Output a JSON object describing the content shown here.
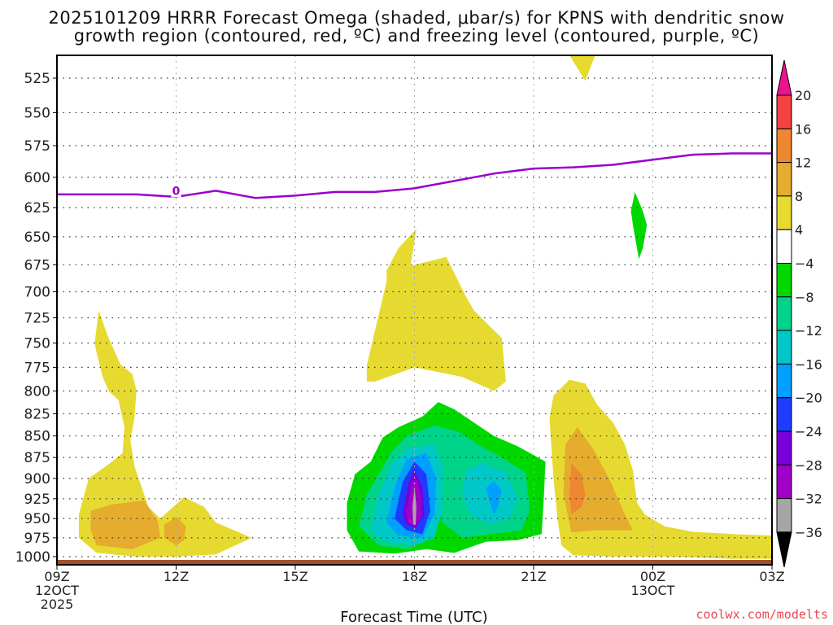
{
  "header": {
    "title_line1": "2025101209 HRRR Forecast Omega (shaded, μbar/s) for KPNS with dendritic snow",
    "title_line2": "growth region (contoured, red, ºC) and freezing level (contoured, purple, ºC)"
  },
  "footer": {
    "credit": "coolwx.com/modelts"
  },
  "chart_data": {
    "type": "heatmap",
    "subtype": "time-height cross section (filled contours)",
    "title": "2025101209 HRRR Forecast Omega (shaded, μbar/s) for KPNS with dendritic snow growth region (contoured, red, ºC) and freezing level (contoured, purple, ºC)",
    "xlabel": "Forecast Time (UTC)",
    "ylabel": "",
    "x_ticks": [
      {
        "hour": 0,
        "lines": [
          "09Z",
          "12OCT",
          "2025"
        ]
      },
      {
        "hour": 3,
        "lines": [
          "12Z"
        ]
      },
      {
        "hour": 6,
        "lines": [
          "15Z"
        ]
      },
      {
        "hour": 9,
        "lines": [
          "18Z"
        ]
      },
      {
        "hour": 12,
        "lines": [
          "21Z"
        ]
      },
      {
        "hour": 15,
        "lines": [
          "00Z",
          "13OCT"
        ]
      },
      {
        "hour": 18,
        "lines": [
          "03Z"
        ]
      }
    ],
    "xlim_hours": [
      0,
      18
    ],
    "y_ticks": [
      525,
      550,
      575,
      600,
      625,
      650,
      675,
      700,
      725,
      750,
      775,
      800,
      825,
      850,
      875,
      900,
      925,
      950,
      975,
      1000
    ],
    "ylim_hPa": [
      1008,
      508
    ],
    "y_scale": "log-pressure",
    "grid": true,
    "colorbar": {
      "label_units": "μbar/s",
      "placement": "right",
      "extend": "both",
      "ticks": [
        "20",
        "16",
        "12",
        "8",
        "4",
        "−4",
        "−8",
        "−12",
        "−16",
        "−20",
        "−24",
        "−28",
        "−32",
        "−36"
      ],
      "bins": [
        {
          "range": "> 20",
          "color": "#ec1290",
          "cap": "top-arrow"
        },
        {
          "range": "16 to 20",
          "color": "#f44141"
        },
        {
          "range": "12 to 16",
          "color": "#ef8630"
        },
        {
          "range": "8 to 12",
          "color": "#e6ac2e"
        },
        {
          "range": "4 to 8",
          "color": "#e6da30"
        },
        {
          "range": "-4 to 4",
          "color": "#ffffff"
        },
        {
          "range": "-8 to -4",
          "color": "#00d800"
        },
        {
          "range": "-12 to -8",
          "color": "#00d38a"
        },
        {
          "range": "-16 to -12",
          "color": "#00c8c8"
        },
        {
          "range": "-20 to -16",
          "color": "#00a0ff"
        },
        {
          "range": "-24 to -20",
          "color": "#1e3cff"
        },
        {
          "range": "-28 to -24",
          "color": "#7800dc"
        },
        {
          "range": "-32 to -28",
          "color": "#a000c8"
        },
        {
          "range": "-36 to -32",
          "color": "#a6a6a6"
        },
        {
          "range": "< -36",
          "color": "#000000",
          "cap": "bottom-arrow"
        }
      ]
    },
    "shaded_regions": [
      {
        "name": "early-low-level-ascent-zone",
        "bin": "4 to 8",
        "hours": [
          0.6,
          4.9
        ],
        "pressure_hPa": [
          720,
          1000
        ],
        "max_bin": "8 to 12",
        "max_at": {
          "hour": 1.4,
          "pressure": 950
        }
      },
      {
        "name": "secondary-small-max",
        "bin": "8 to 12",
        "hour": 2.9,
        "pressure": 965
      },
      {
        "name": "mid-level-positive-plume",
        "bin": "4 to 8",
        "hours": [
          7.9,
          11.4
        ],
        "pressure_hPa": [
          635,
          805
        ]
      },
      {
        "name": "strong-descent-core",
        "bin": "-36 to -32",
        "min_value_approx": -34,
        "hour": 9.0,
        "pressure": 930,
        "extent_hours": [
          7.3,
          12.2
        ],
        "extent_pressure": [
          808,
          990
        ]
      },
      {
        "name": "secondary-descent-core",
        "bin": "-20 to -16",
        "hour": 11.0,
        "pressure": 920
      },
      {
        "name": "late-low-level-ascent-zone",
        "bin": "4 to 8",
        "hours": [
          12.5,
          18.0
        ],
        "pressure_hPa": [
          790,
          1000
        ],
        "max_bin": "12 to 16",
        "max_at": {
          "hour": 12.9,
          "pressure": 900
        }
      },
      {
        "name": "upper-small-ascent-top",
        "bin": "4 to 8",
        "hour": 13.0,
        "pressure": 520
      },
      {
        "name": "upper-small-descent",
        "bin": "-8 to -4",
        "hour": 14.6,
        "pressure": 640
      }
    ],
    "freezing_level": {
      "label": "0",
      "color": "#9900cc",
      "hours": [
        0,
        2,
        3,
        4,
        5,
        6,
        7,
        8,
        9,
        10,
        11,
        12,
        13,
        14,
        15,
        16,
        17,
        18
      ],
      "pressure_hPa": [
        614,
        614,
        616,
        611,
        617,
        615,
        612,
        612,
        609,
        603,
        597,
        593,
        592,
        590,
        586,
        582,
        581,
        581
      ]
    },
    "ground": {
      "color": "#a0522d",
      "pressure_hPa": 1008
    }
  }
}
